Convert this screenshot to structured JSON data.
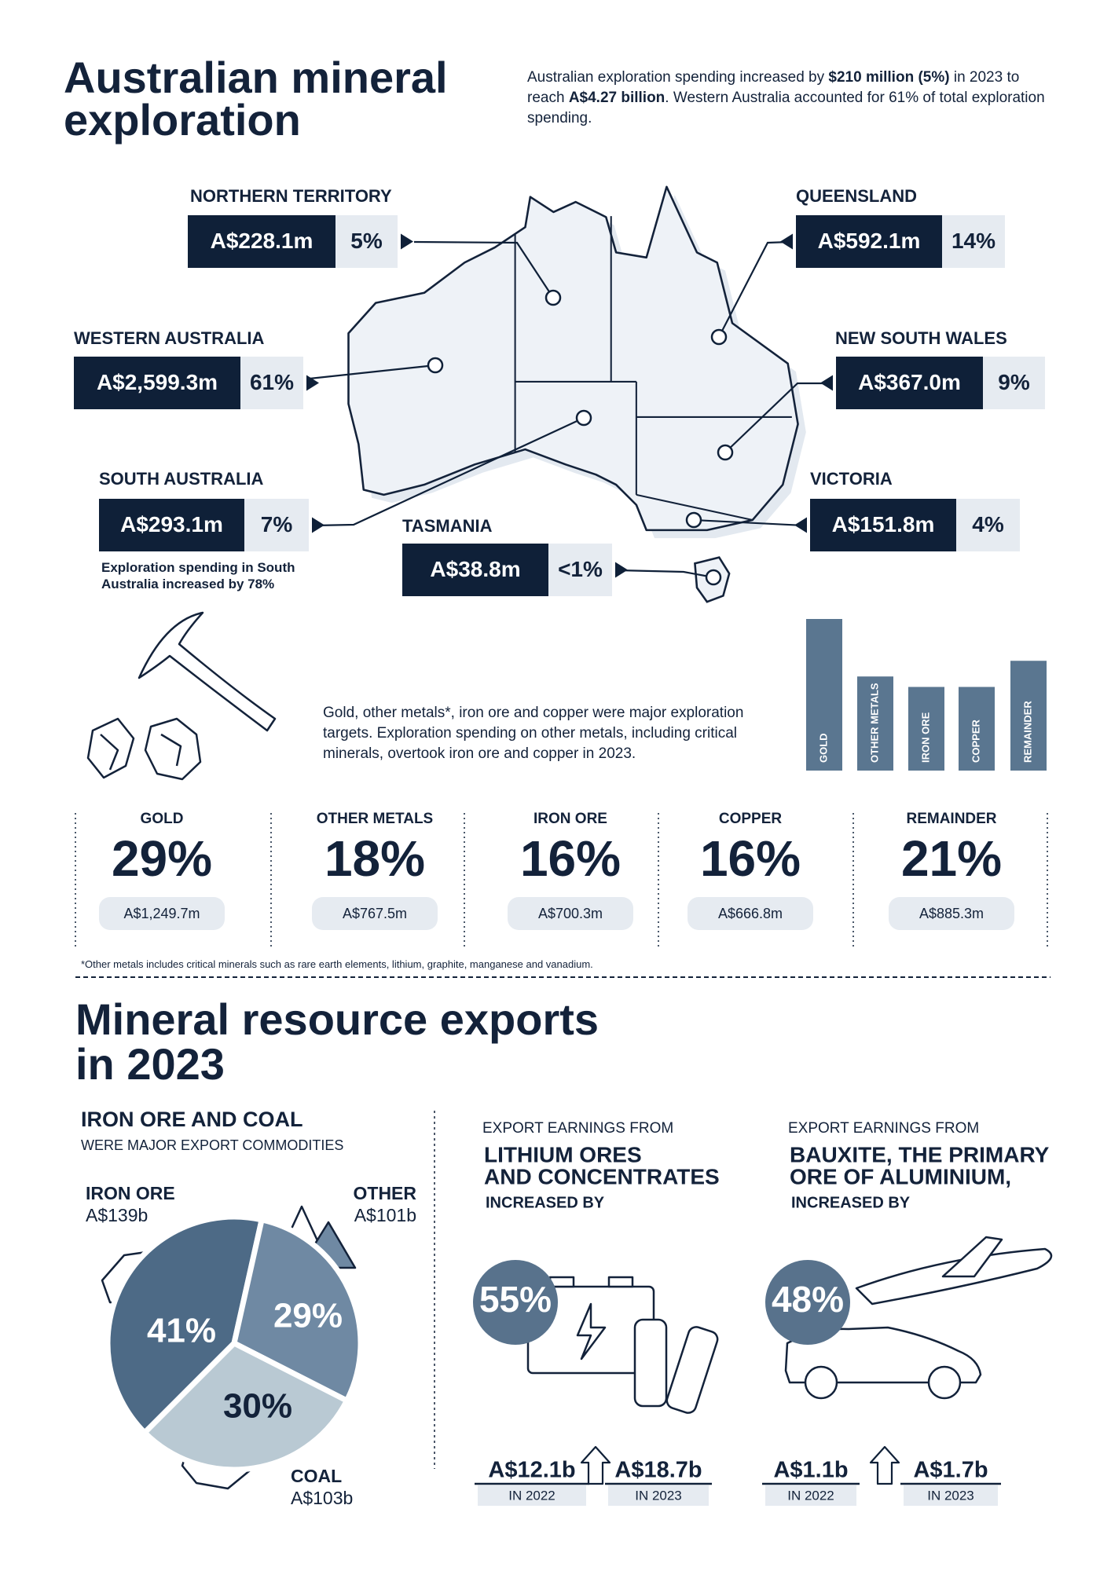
{
  "exploration": {
    "title_lines": [
      "Australian mineral",
      "exploration"
    ],
    "intro": [
      "Australian exploration spending increased by ",
      "$210 million (5%)",
      " in 2023 to reach ",
      "A$4.27 billion",
      ". Western Australia accounted for 61% of total exploration spending."
    ],
    "states": [
      {
        "name": "NORTHERN TERRITORY",
        "amount": "A$228.1m",
        "share": "5%"
      },
      {
        "name": "QUEENSLAND",
        "amount": "A$592.1m",
        "share": "14%"
      },
      {
        "name": "WESTERN AUSTRALIA",
        "amount": "A$2,599.3m",
        "share": "61%"
      },
      {
        "name": "NEW SOUTH WALES",
        "amount": "A$367.0m",
        "share": "9%"
      },
      {
        "name": "SOUTH AUSTRALIA",
        "amount": "A$293.1m",
        "share": "7%"
      },
      {
        "name": "VICTORIA",
        "amount": "A$151.8m",
        "share": "4%"
      },
      {
        "name": "TASMANIA",
        "amount": "A$38.8m",
        "share": "<1%"
      }
    ],
    "sa_note": "Exploration spending in South Australia increased by 78%",
    "targets_text": "Gold, other metals*, iron ore and copper were major exploration targets. Exploration spending on other metals, including critical minerals, overtook iron ore and copper in 2023.",
    "chart_data": {
      "type": "bar",
      "categories": [
        "GOLD",
        "OTHER METALS",
        "IRON ORE",
        "COPPER",
        "REMAINDER"
      ],
      "values": [
        29,
        18,
        16,
        16,
        21
      ],
      "value_labels": [
        "29%",
        "18%",
        "16%",
        "16%",
        "21%"
      ],
      "amounts": [
        "A$1,249.7m",
        "A$767.5m",
        "A$700.3m",
        "A$666.8m",
        "A$885.3m"
      ],
      "color": "#5a7690"
    },
    "footnote": "*Other metals includes critical minerals such as rare earth elements, lithium, graphite, manganese and vanadium."
  },
  "exports": {
    "title_lines": [
      "Mineral resource exports",
      "in 2023"
    ],
    "commodities": {
      "heading": "IRON ORE AND COAL",
      "subheading": "WERE MAJOR EXPORT COMMODITIES",
      "chart_data": {
        "type": "pie",
        "categories": [
          "IRON ORE",
          "OTHER",
          "COAL"
        ],
        "values": [
          41,
          29,
          30
        ],
        "value_labels": [
          "41%",
          "29%",
          "30%"
        ],
        "amounts": [
          "A$139b",
          "A$101b",
          "A$103b"
        ],
        "colors": [
          "#4d6a86",
          "#6f89a3",
          "#b9c9d3"
        ]
      }
    },
    "lithium": {
      "kicker": "EXPORT EARNINGS FROM",
      "heading_lines": [
        "LITHIUM ORES",
        "AND CONCENTRATES"
      ],
      "lead": "INCREASED BY",
      "increase": "55%",
      "before": {
        "value": "A$12.1b",
        "year": "IN 2022"
      },
      "after": {
        "value": "A$18.7b",
        "year": "IN 2023"
      }
    },
    "bauxite": {
      "kicker": "EXPORT EARNINGS FROM",
      "heading_lines": [
        "BAUXITE, THE PRIMARY",
        "ORE OF ALUMINIUM,"
      ],
      "lead": "INCREASED BY",
      "increase": "48%",
      "before": {
        "value": "A$1.1b",
        "year": "IN 2022"
      },
      "after": {
        "value": "A$1.7b",
        "year": "IN 2023"
      }
    }
  }
}
